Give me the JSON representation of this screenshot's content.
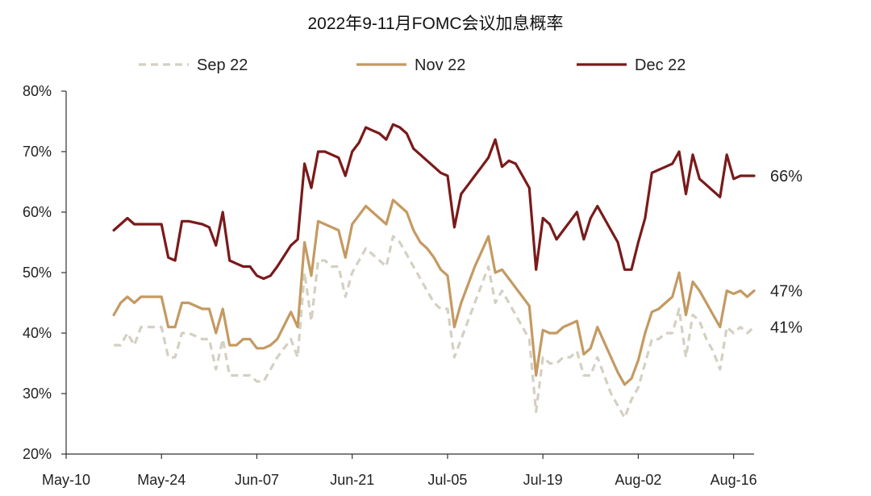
{
  "chart_data": {
    "type": "line",
    "title": "2022年9-11月FOMC会议加息概率",
    "xlabel": "",
    "ylabel": "",
    "ylim": [
      0.2,
      0.8
    ],
    "yticks": [
      0.2,
      0.3,
      0.4,
      0.5,
      0.6,
      0.7,
      0.8
    ],
    "yticklabels": [
      "20%",
      "30%",
      "40%",
      "50%",
      "60%",
      "70%",
      "80%"
    ],
    "xticks": [
      0,
      14,
      28,
      42,
      56,
      70,
      84,
      98
    ],
    "xticklabels": [
      "May-10",
      "May-24",
      "Jun-07",
      "Jun-21",
      "Jul-05",
      "Jul-19",
      "Aug-02",
      "Aug-16"
    ],
    "xlim": [
      0,
      101
    ],
    "legend_position": "top",
    "grid": false,
    "series": [
      {
        "name": "Sep 22",
        "color": "#d4d0c2",
        "style": "dashed",
        "end_label": "41%",
        "x": [
          7,
          8,
          9,
          10,
          11,
          12,
          13,
          14,
          15,
          16,
          17,
          18,
          20,
          21,
          22,
          23,
          24,
          25,
          26,
          27,
          28,
          29,
          30,
          31,
          33,
          34,
          35,
          36,
          37,
          38,
          39,
          40,
          41,
          42,
          43,
          44,
          45,
          46,
          47,
          48,
          49,
          50,
          51,
          52,
          53,
          54,
          55,
          56,
          57,
          58,
          59,
          60,
          61,
          62,
          63,
          64,
          65,
          66,
          67,
          68,
          69,
          70,
          71,
          72,
          73,
          74,
          75,
          76,
          77,
          78,
          79,
          80,
          81,
          82,
          83,
          84,
          85,
          86,
          87,
          88,
          89,
          90,
          91,
          92,
          93,
          94,
          95,
          96,
          97,
          98,
          99,
          100,
          101
        ],
        "values": [
          0.38,
          0.38,
          0.4,
          0.38,
          0.41,
          0.41,
          0.41,
          0.41,
          0.36,
          0.36,
          0.4,
          0.4,
          0.39,
          0.39,
          0.34,
          0.39,
          0.33,
          0.33,
          0.33,
          0.33,
          0.32,
          0.32,
          0.34,
          0.36,
          0.39,
          0.36,
          0.5,
          0.42,
          0.52,
          0.52,
          0.51,
          0.51,
          0.46,
          0.5,
          0.52,
          0.54,
          0.53,
          0.52,
          0.51,
          0.56,
          0.55,
          0.53,
          0.51,
          0.49,
          0.47,
          0.45,
          0.44,
          0.44,
          0.36,
          0.39,
          0.42,
          0.45,
          0.48,
          0.51,
          0.45,
          0.47,
          0.45,
          0.43,
          0.41,
          0.39,
          0.27,
          0.36,
          0.35,
          0.35,
          0.36,
          0.36,
          0.37,
          0.33,
          0.33,
          0.36,
          0.33,
          0.3,
          0.28,
          0.26,
          0.29,
          0.31,
          0.35,
          0.39,
          0.39,
          0.4,
          0.4,
          0.44,
          0.36,
          0.43,
          0.42,
          0.39,
          0.37,
          0.34,
          0.41,
          0.4,
          0.41,
          0.4,
          0.41
        ]
      },
      {
        "name": "Nov 22",
        "color": "#c49a62",
        "style": "solid",
        "end_label": "47%",
        "x": [
          7,
          8,
          9,
          10,
          11,
          12,
          13,
          14,
          15,
          16,
          17,
          18,
          20,
          21,
          22,
          23,
          24,
          25,
          26,
          27,
          28,
          29,
          30,
          31,
          33,
          34,
          35,
          36,
          37,
          38,
          39,
          40,
          41,
          42,
          43,
          44,
          45,
          46,
          47,
          48,
          49,
          50,
          51,
          52,
          53,
          54,
          55,
          56,
          57,
          58,
          59,
          60,
          61,
          62,
          63,
          64,
          65,
          66,
          67,
          68,
          69,
          70,
          71,
          72,
          73,
          74,
          75,
          76,
          77,
          78,
          79,
          80,
          81,
          82,
          83,
          84,
          85,
          86,
          87,
          88,
          89,
          90,
          91,
          92,
          93,
          94,
          95,
          96,
          97,
          98,
          99,
          100,
          101
        ],
        "values": [
          0.43,
          0.45,
          0.46,
          0.45,
          0.46,
          0.46,
          0.46,
          0.46,
          0.41,
          0.41,
          0.45,
          0.45,
          0.44,
          0.44,
          0.4,
          0.44,
          0.38,
          0.38,
          0.39,
          0.39,
          0.375,
          0.375,
          0.38,
          0.39,
          0.435,
          0.41,
          0.55,
          0.495,
          0.585,
          0.58,
          0.575,
          0.57,
          0.525,
          0.58,
          0.595,
          0.61,
          0.6,
          0.59,
          0.58,
          0.62,
          0.61,
          0.6,
          0.57,
          0.55,
          0.54,
          0.525,
          0.505,
          0.495,
          0.41,
          0.45,
          0.48,
          0.51,
          0.535,
          0.56,
          0.5,
          0.505,
          0.49,
          0.475,
          0.46,
          0.445,
          0.33,
          0.405,
          0.4,
          0.4,
          0.41,
          0.415,
          0.42,
          0.365,
          0.375,
          0.41,
          0.385,
          0.36,
          0.335,
          0.315,
          0.325,
          0.355,
          0.4,
          0.435,
          0.44,
          0.45,
          0.46,
          0.5,
          0.43,
          0.485,
          0.47,
          0.45,
          0.43,
          0.41,
          0.47,
          0.465,
          0.47,
          0.46,
          0.47
        ]
      },
      {
        "name": "Dec 22",
        "color": "#7a1a1a",
        "style": "solid",
        "end_label": "66%",
        "x": [
          7,
          8,
          9,
          10,
          11,
          12,
          13,
          14,
          15,
          16,
          17,
          18,
          20,
          21,
          22,
          23,
          24,
          25,
          26,
          27,
          28,
          29,
          30,
          31,
          33,
          34,
          35,
          36,
          37,
          38,
          39,
          40,
          41,
          42,
          43,
          44,
          45,
          46,
          47,
          48,
          49,
          50,
          51,
          52,
          53,
          54,
          55,
          56,
          57,
          58,
          59,
          60,
          61,
          62,
          63,
          64,
          65,
          66,
          67,
          68,
          69,
          70,
          71,
          72,
          73,
          74,
          75,
          76,
          77,
          78,
          79,
          80,
          81,
          82,
          83,
          84,
          85,
          86,
          87,
          88,
          89,
          90,
          91,
          92,
          93,
          94,
          95,
          96,
          97,
          98,
          99,
          100,
          101
        ],
        "values": [
          0.57,
          0.58,
          0.59,
          0.58,
          0.58,
          0.58,
          0.58,
          0.58,
          0.525,
          0.52,
          0.585,
          0.585,
          0.58,
          0.575,
          0.545,
          0.6,
          0.52,
          0.515,
          0.51,
          0.51,
          0.495,
          0.49,
          0.495,
          0.51,
          0.545,
          0.555,
          0.68,
          0.64,
          0.7,
          0.7,
          0.695,
          0.69,
          0.66,
          0.7,
          0.715,
          0.74,
          0.735,
          0.73,
          0.72,
          0.745,
          0.74,
          0.73,
          0.705,
          0.695,
          0.685,
          0.675,
          0.665,
          0.66,
          0.575,
          0.63,
          0.645,
          0.66,
          0.675,
          0.69,
          0.72,
          0.675,
          0.685,
          0.68,
          0.66,
          0.64,
          0.505,
          0.59,
          0.58,
          0.555,
          0.57,
          0.585,
          0.6,
          0.555,
          0.59,
          0.61,
          0.59,
          0.57,
          0.55,
          0.505,
          0.505,
          0.55,
          0.59,
          0.665,
          0.67,
          0.675,
          0.68,
          0.7,
          0.63,
          0.695,
          0.655,
          0.645,
          0.635,
          0.625,
          0.695,
          0.655,
          0.66,
          0.66,
          0.66
        ]
      }
    ]
  }
}
